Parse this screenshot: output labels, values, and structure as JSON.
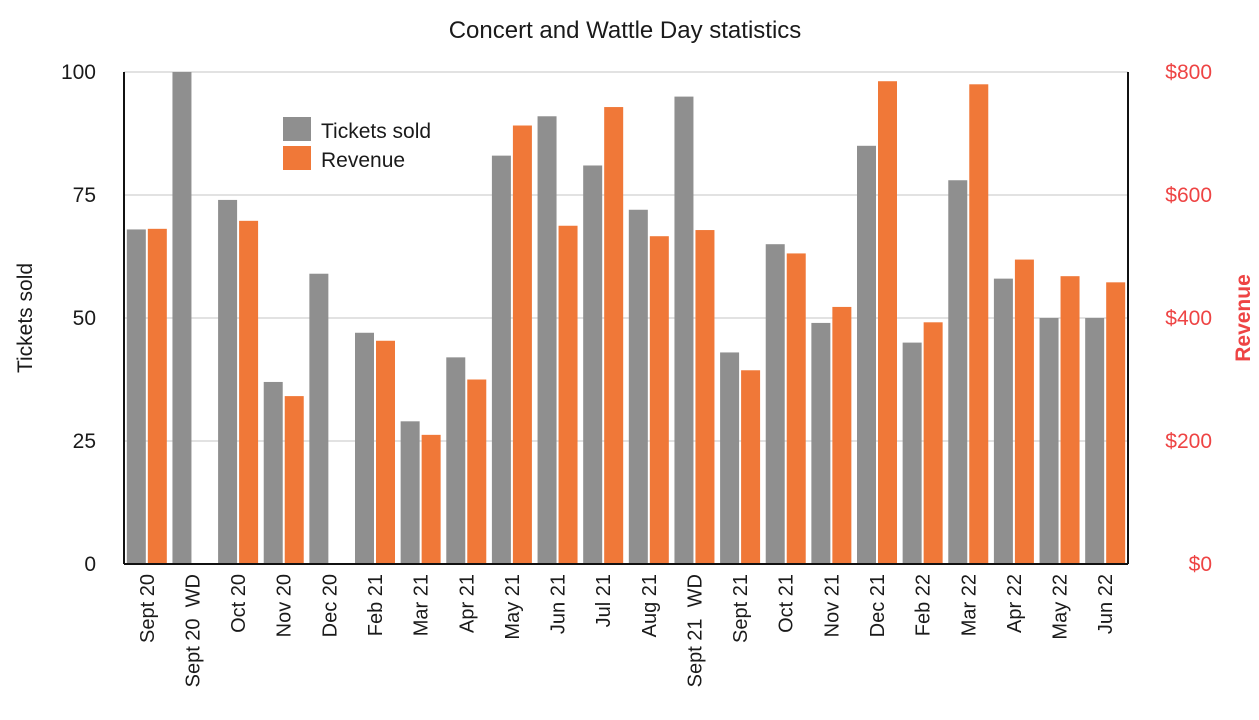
{
  "chart_data": {
    "type": "bar",
    "title": "Concert and Wattle Day statistics",
    "categories": [
      "Sept 20",
      "Sept 20  WD",
      "Oct 20",
      "Nov 20",
      "Dec 20",
      "Feb 21",
      "Mar 21",
      "Apr 21",
      "May 21",
      "Jun 21",
      "Jul 21",
      "Aug 21",
      "Sept 21  WD",
      "Sept 21",
      "Oct 21",
      "Nov 21",
      "Dec 21",
      "Feb 22",
      "Mar 22",
      "Apr 22",
      "May 22",
      "Jun 22"
    ],
    "series": [
      {
        "name": "Tickets sold",
        "axis": "left",
        "color": "#8f8f8f",
        "values": [
          68,
          100,
          74,
          37,
          59,
          47,
          29,
          42,
          83,
          91,
          81,
          72,
          95,
          43,
          65,
          49,
          85,
          45,
          78,
          58,
          50,
          50
        ]
      },
      {
        "name": "Revenue",
        "axis": "right",
        "color": "#f07838",
        "values": [
          545,
          null,
          558,
          273,
          null,
          363,
          210,
          300,
          713,
          550,
          743,
          533,
          543,
          315,
          505,
          418,
          785,
          393,
          780,
          495,
          468,
          458
        ]
      }
    ],
    "y_left": {
      "label": "Tickets sold",
      "range": [
        0,
        100
      ],
      "ticks": [
        0,
        25,
        50,
        75,
        100
      ],
      "tick_labels": [
        "0",
        "25",
        "50",
        "75",
        "100"
      ]
    },
    "y_right": {
      "label": "Revenue",
      "range": [
        0,
        800
      ],
      "ticks": [
        0,
        200,
        400,
        600,
        800
      ],
      "tick_labels": [
        "$0",
        "$200",
        "$400",
        "$600",
        "$800"
      ],
      "color": "#ee4444"
    },
    "grid": true,
    "legend": "top-left, inside plot"
  }
}
